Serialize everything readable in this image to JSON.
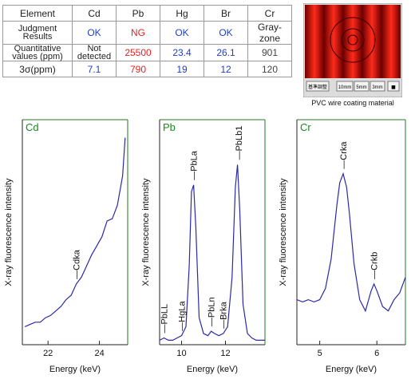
{
  "results_table": {
    "header": [
      "Element",
      "Cd",
      "Pb",
      "Hg",
      "Br",
      "Cr"
    ],
    "rows": [
      {
        "label": [
          "Judgment",
          "Results"
        ],
        "cells": [
          {
            "text": "OK",
            "color": "#1f3fc8"
          },
          {
            "text": "NG",
            "color": "#e22222"
          },
          {
            "text": "OK",
            "color": "#1f3fc8"
          },
          {
            "text": "OK",
            "color": "#1f3fc8"
          },
          {
            "text": "Gray-zone",
            "color": "#222222"
          }
        ]
      },
      {
        "label": [
          "Quantitative",
          "values (ppm)"
        ],
        "cells": [
          {
            "text": "Not detected",
            "lines": [
              "Not",
              "detected"
            ],
            "color": "#222222"
          },
          {
            "text": "25500",
            "color": "#e22222"
          },
          {
            "text": "23.4",
            "color": "#1f3fc8"
          },
          {
            "text": "26.1",
            "color": "#1f3fc8"
          },
          {
            "text": "901",
            "color": "#444444"
          }
        ]
      },
      {
        "label": [
          "3σ(ppm)"
        ],
        "cells": [
          {
            "text": "7.1",
            "color": "#1f3fc8"
          },
          {
            "text": "790",
            "color": "#e22222"
          },
          {
            "text": "19",
            "color": "#1f3fc8"
          },
          {
            "text": "12",
            "color": "#1f3fc8"
          },
          {
            "text": "120",
            "color": "#444444"
          }
        ]
      }
    ]
  },
  "photo": {
    "caption": "PVC wire coating material",
    "buttons": [
      "基準調整",
      "10mm",
      "5mm",
      "3mm",
      "■"
    ],
    "colors": {
      "wire": "#c8140e",
      "frame": "#dcdcdc"
    }
  },
  "colors": {
    "trace": "#2a2aa8",
    "panel_title": "#1a8a1a",
    "frame": "#1e7a1e"
  },
  "chart_data": [
    {
      "type": "line",
      "title": "Cd",
      "xlabel": "Energy (keV)",
      "ylabel": "X-ray fluorescence intensity",
      "xlim": [
        21.0,
        25.1
      ],
      "ylim": [
        0,
        1
      ],
      "xticks": [
        22,
        24
      ],
      "peaks": [
        {
          "label": "Cdka",
          "x": 23.1
        }
      ],
      "series": [
        {
          "x": [
            21.1,
            21.3,
            21.5,
            21.7,
            21.9,
            22.1,
            22.3,
            22.5,
            22.7,
            22.9,
            23.1,
            23.3,
            23.5,
            23.7,
            23.9,
            24.1,
            24.3,
            24.5,
            24.7,
            24.9,
            25.0
          ],
          "y": [
            0.08,
            0.09,
            0.1,
            0.1,
            0.12,
            0.13,
            0.15,
            0.17,
            0.2,
            0.22,
            0.27,
            0.3,
            0.35,
            0.4,
            0.44,
            0.48,
            0.55,
            0.56,
            0.62,
            0.75,
            0.92
          ]
        }
      ]
    },
    {
      "type": "line",
      "title": "Pb",
      "xlabel": "Energy (keV)",
      "ylabel": "X-ray fluorescence intensity",
      "xlim": [
        9.0,
        13.8
      ],
      "ylim": [
        0,
        1
      ],
      "xticks": [
        10,
        12
      ],
      "peaks": [
        {
          "label": "PbLL",
          "x": 9.2
        },
        {
          "label": "HgLa",
          "x": 10.0
        },
        {
          "label": "PbLa",
          "x": 10.55
        },
        {
          "label": "PbLn",
          "x": 11.35
        },
        {
          "label": "Brka",
          "x": 11.9
        },
        {
          "label": "PbLb1",
          "x": 12.6
        }
      ],
      "series": [
        {
          "x": [
            9.0,
            9.2,
            9.4,
            9.6,
            9.8,
            10.0,
            10.2,
            10.35,
            10.45,
            10.55,
            10.65,
            10.8,
            11.0,
            11.2,
            11.35,
            11.5,
            11.7,
            11.9,
            12.1,
            12.3,
            12.45,
            12.55,
            12.65,
            12.8,
            13.0,
            13.2,
            13.4,
            13.6,
            13.8
          ],
          "y": [
            0.02,
            0.03,
            0.02,
            0.02,
            0.03,
            0.04,
            0.08,
            0.35,
            0.68,
            0.71,
            0.52,
            0.12,
            0.05,
            0.04,
            0.06,
            0.05,
            0.04,
            0.05,
            0.08,
            0.3,
            0.7,
            0.8,
            0.6,
            0.18,
            0.05,
            0.03,
            0.02,
            0.02,
            0.02
          ]
        }
      ]
    },
    {
      "type": "line",
      "title": "Cr",
      "xlabel": "Energy (keV)",
      "ylabel": "X-ray fluorescence intensity",
      "xlim": [
        4.6,
        6.5
      ],
      "ylim": [
        0,
        1
      ],
      "xticks": [
        5,
        6
      ],
      "peaks": [
        {
          "label": "Crka",
          "x": 5.41
        },
        {
          "label": "Crkb",
          "x": 5.95
        }
      ],
      "series": [
        {
          "x": [
            4.6,
            4.7,
            4.8,
            4.9,
            5.0,
            5.1,
            5.2,
            5.25,
            5.3,
            5.35,
            5.41,
            5.47,
            5.52,
            5.6,
            5.7,
            5.8,
            5.9,
            5.95,
            6.0,
            6.1,
            6.2,
            6.3,
            6.4,
            6.5
          ],
          "y": [
            0.2,
            0.19,
            0.2,
            0.19,
            0.2,
            0.25,
            0.38,
            0.5,
            0.62,
            0.72,
            0.76,
            0.7,
            0.58,
            0.36,
            0.2,
            0.15,
            0.24,
            0.27,
            0.24,
            0.17,
            0.15,
            0.2,
            0.23,
            0.3
          ]
        }
      ]
    }
  ]
}
